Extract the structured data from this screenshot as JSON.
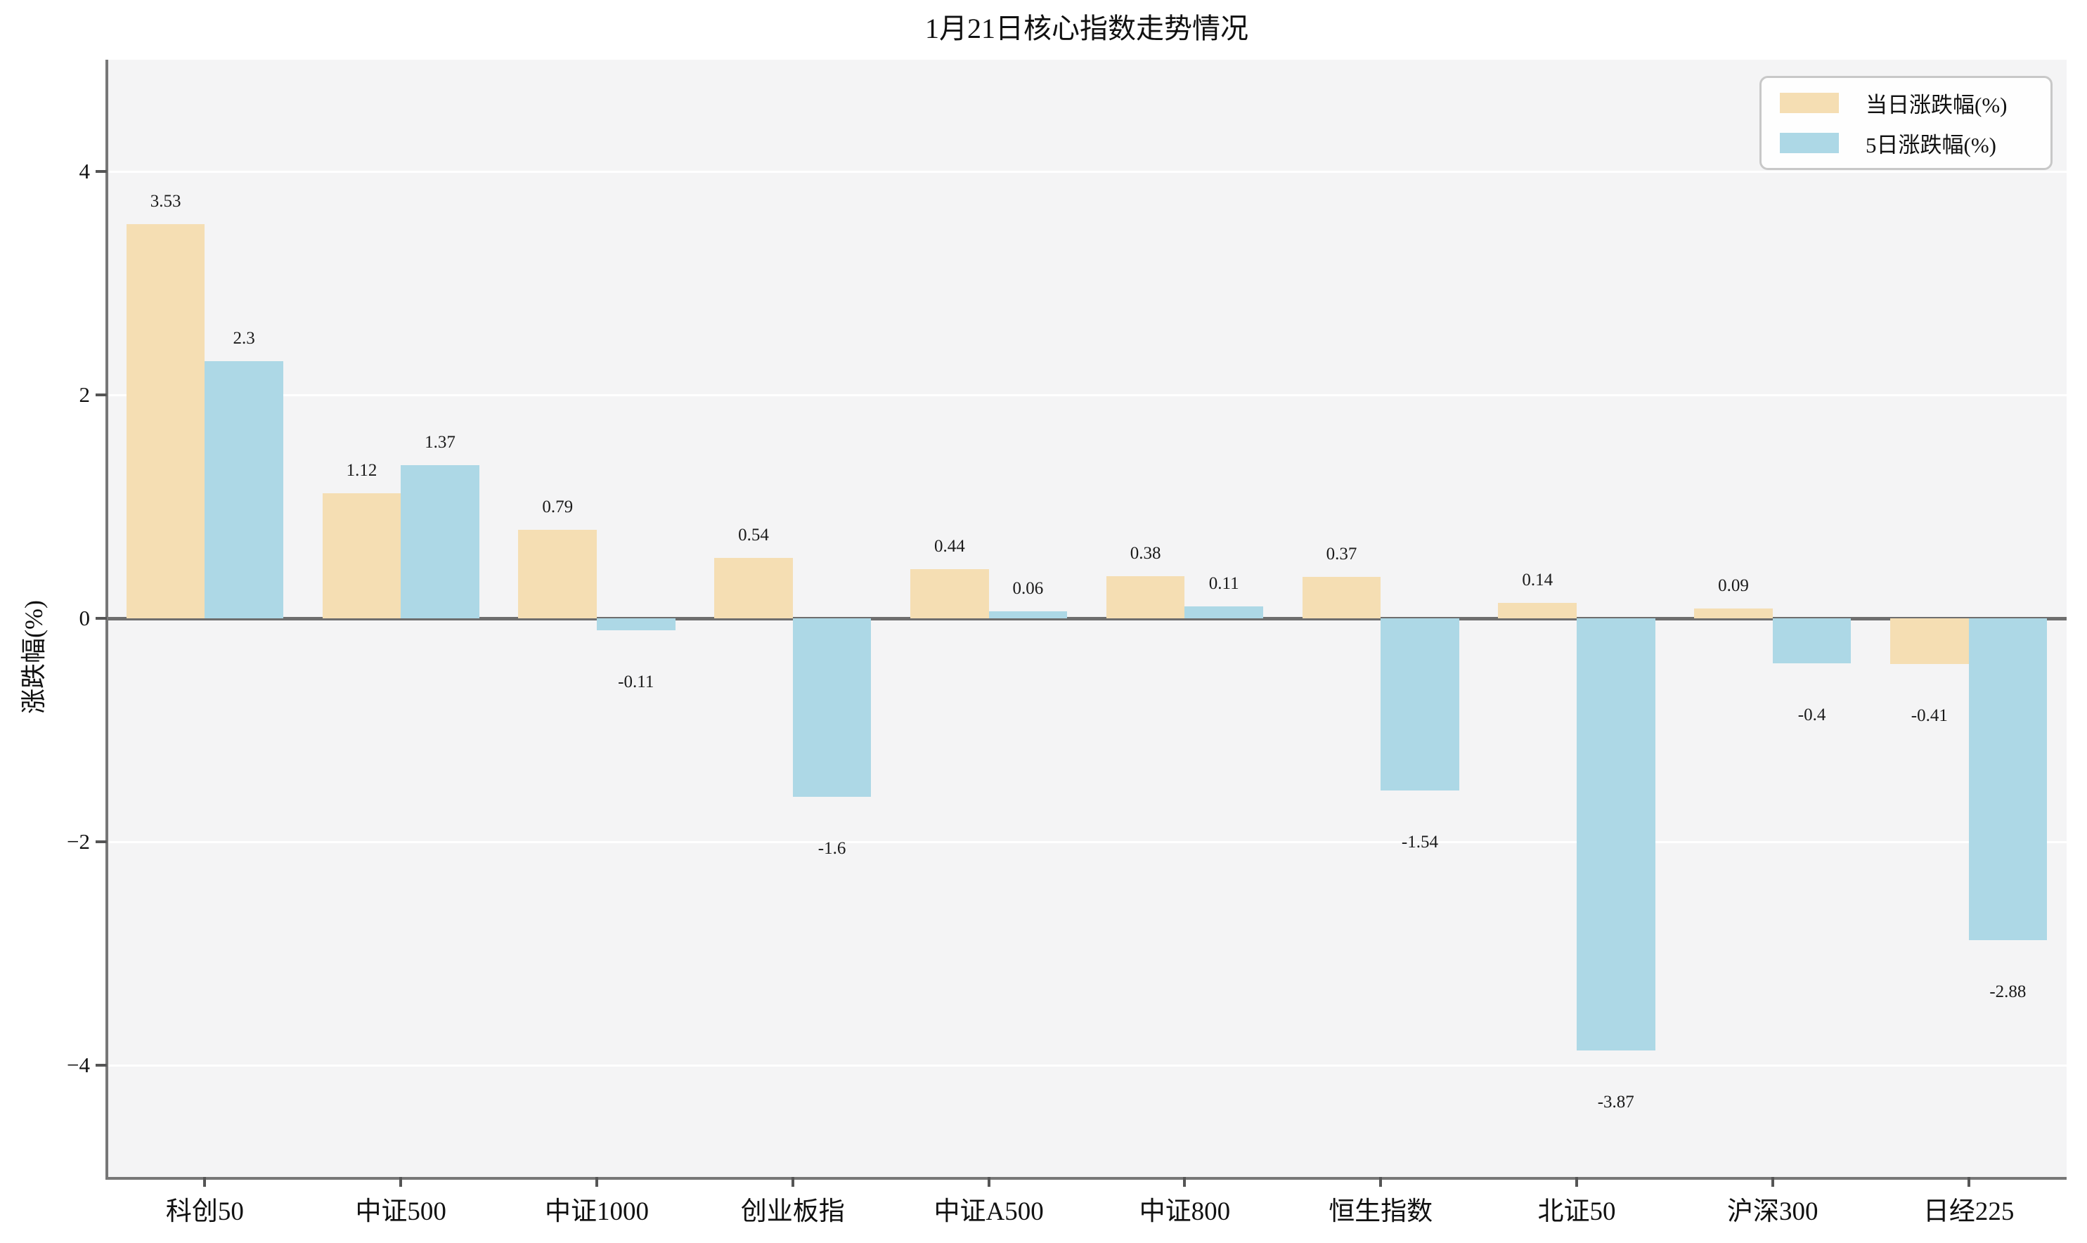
{
  "title": "1月21日核心指数走势情况",
  "chart_data": {
    "type": "bar",
    "title": "1月21日核心指数走势情况",
    "xlabel": "",
    "ylabel": "涨跌幅(%)",
    "categories": [
      "科创50",
      "中证500",
      "中证1000",
      "创业板指",
      "中证A500",
      "中证800",
      "恒生指数",
      "北证50",
      "沪深300",
      "日经225"
    ],
    "series": [
      {
        "name": "当日涨跌幅(%)",
        "color": "#f5deb3",
        "values": [
          3.53,
          1.12,
          0.79,
          0.54,
          0.44,
          0.38,
          0.37,
          0.14,
          0.09,
          -0.41
        ]
      },
      {
        "name": "5日涨跌幅(%)",
        "color": "#add8e6",
        "values": [
          2.3,
          1.37,
          -0.11,
          -1.6,
          0.06,
          0.11,
          -1.54,
          -3.87,
          -0.4,
          -2.88
        ]
      }
    ],
    "ylim": [
      -5,
      5
    ],
    "yticks": [
      4,
      2,
      0,
      -2,
      -4
    ],
    "ytick_labels": [
      "4",
      "2",
      "0",
      "−2",
      "−4"
    ],
    "grid": true,
    "legend_position": "top-right",
    "plot_background": "#f4f4f5",
    "figure_background": "#ffffff",
    "zero_line_color": "#6e6e6e",
    "spine_color": "#777777",
    "text_color": "#111111"
  }
}
